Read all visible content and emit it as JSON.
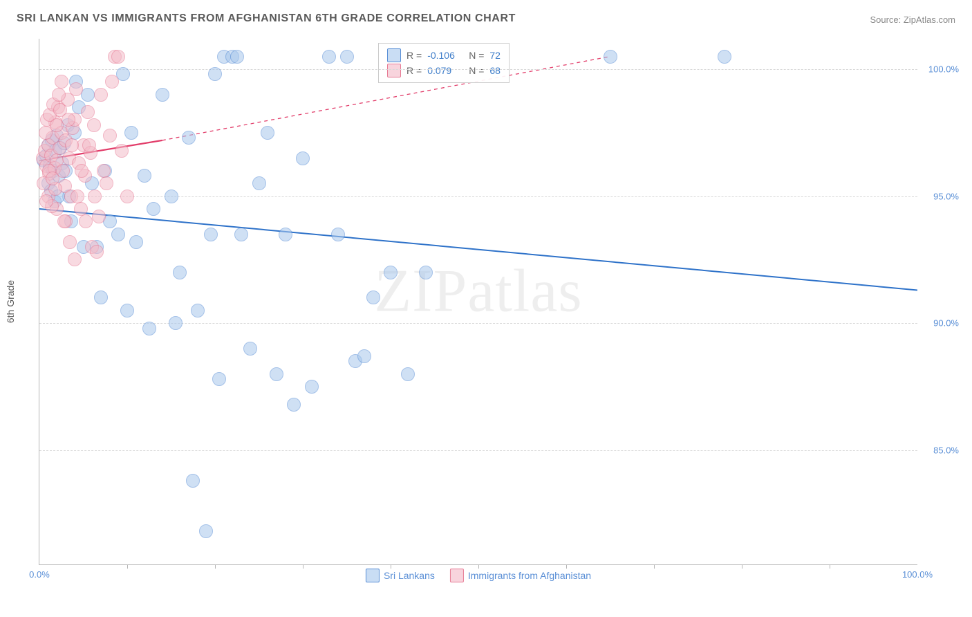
{
  "header": {
    "title": "SRI LANKAN VS IMMIGRANTS FROM AFGHANISTAN 6TH GRADE CORRELATION CHART",
    "source": "Source: ZipAtlas.com"
  },
  "chart": {
    "type": "scatter",
    "ylabel": "6th Grade",
    "watermark": "ZIPatlas",
    "background_color": "#ffffff",
    "grid_color": "#d8d8d8",
    "axis_color": "#b5b5b5",
    "xlim": [
      0,
      100
    ],
    "ylim": [
      80.5,
      101.2
    ],
    "x_ticks": [
      0,
      100
    ],
    "x_tick_labels": [
      "0.0%",
      "100.0%"
    ],
    "x_minor_ticks": [
      10,
      20,
      30,
      40,
      50,
      60,
      70,
      80,
      90
    ],
    "y_ticks": [
      85,
      90,
      95,
      100
    ],
    "y_tick_labels": [
      "85.0%",
      "90.0%",
      "95.0%",
      "100.0%"
    ],
    "marker_radius": 9,
    "marker_opacity": 0.55,
    "series": [
      {
        "name": "Sri Lankans",
        "color_fill": "#a8c7ec",
        "color_stroke": "#5a8fd6",
        "legend_swatch_fill": "#c9ddf4",
        "legend_swatch_stroke": "#5a8fd6",
        "R": "-0.106",
        "N": "72",
        "trend": {
          "x1": 0,
          "y1": 94.5,
          "x2": 100,
          "y2": 91.3,
          "color": "#2e72c9",
          "width": 2,
          "dash": "none"
        },
        "points": [
          [
            0.5,
            96.4
          ],
          [
            0.8,
            96.6
          ],
          [
            1.0,
            97.0
          ],
          [
            1.2,
            96.2
          ],
          [
            1.4,
            97.2
          ],
          [
            1.6,
            96.0
          ],
          [
            1.8,
            96.8
          ],
          [
            2.0,
            97.4
          ],
          [
            2.2,
            95.8
          ],
          [
            2.4,
            96.9
          ],
          [
            2.6,
            96.3
          ],
          [
            2.8,
            97.1
          ],
          [
            3.0,
            96.0
          ],
          [
            3.2,
            97.8
          ],
          [
            3.4,
            95.0
          ],
          [
            3.6,
            94.0
          ],
          [
            4.0,
            97.5
          ],
          [
            4.2,
            99.5
          ],
          [
            4.5,
            98.5
          ],
          [
            5.0,
            93.0
          ],
          [
            5.5,
            99.0
          ],
          [
            6.0,
            95.5
          ],
          [
            6.5,
            93.0
          ],
          [
            7.0,
            91.0
          ],
          [
            7.5,
            96.0
          ],
          [
            8.0,
            94.0
          ],
          [
            9.0,
            93.5
          ],
          [
            9.5,
            99.8
          ],
          [
            10.0,
            90.5
          ],
          [
            10.5,
            97.5
          ],
          [
            11.0,
            93.2
          ],
          [
            12.0,
            95.8
          ],
          [
            12.5,
            89.8
          ],
          [
            13.0,
            94.5
          ],
          [
            14.0,
            99.0
          ],
          [
            15.0,
            95.0
          ],
          [
            15.5,
            90.0
          ],
          [
            16.0,
            92.0
          ],
          [
            17.0,
            97.3
          ],
          [
            17.5,
            83.8
          ],
          [
            18.0,
            90.5
          ],
          [
            19.0,
            81.8
          ],
          [
            19.5,
            93.5
          ],
          [
            20.0,
            99.8
          ],
          [
            20.5,
            87.8
          ],
          [
            21.0,
            100.5
          ],
          [
            22.0,
            100.5
          ],
          [
            22.5,
            100.5
          ],
          [
            23.0,
            93.5
          ],
          [
            24.0,
            89.0
          ],
          [
            25.0,
            95.5
          ],
          [
            26.0,
            97.5
          ],
          [
            27.0,
            88.0
          ],
          [
            28.0,
            93.5
          ],
          [
            29.0,
            86.8
          ],
          [
            30.0,
            96.5
          ],
          [
            31.0,
            87.5
          ],
          [
            33.0,
            100.5
          ],
          [
            34.0,
            93.5
          ],
          [
            35.0,
            100.5
          ],
          [
            36.0,
            88.5
          ],
          [
            37.0,
            88.7
          ],
          [
            38.0,
            91.0
          ],
          [
            40.0,
            92.0
          ],
          [
            42.0,
            88.0
          ],
          [
            44.0,
            92.0
          ],
          [
            65.0,
            100.5
          ],
          [
            78.0,
            100.5
          ],
          [
            1.0,
            95.5
          ],
          [
            1.3,
            95.2
          ],
          [
            1.7,
            94.8
          ],
          [
            2.1,
            95.0
          ]
        ]
      },
      {
        "name": "Immigrants from Afghanistan",
        "color_fill": "#f4bcc9",
        "color_stroke": "#e77a94",
        "legend_swatch_fill": "#f8d4dd",
        "legend_swatch_stroke": "#e77a94",
        "R": "0.079",
        "N": "68",
        "trend": {
          "x1": 0,
          "y1": 96.4,
          "x2": 14,
          "y2": 97.2,
          "color": "#e23d6a",
          "width": 2.2,
          "dash": "none",
          "ext_x2": 65,
          "ext_y2": 100.5,
          "ext_dash": "5,5"
        },
        "points": [
          [
            0.4,
            96.5
          ],
          [
            0.6,
            96.8
          ],
          [
            0.8,
            96.2
          ],
          [
            1.0,
            97.0
          ],
          [
            1.1,
            95.9
          ],
          [
            1.3,
            96.6
          ],
          [
            1.5,
            97.3
          ],
          [
            1.7,
            96.1
          ],
          [
            1.8,
            97.9
          ],
          [
            2.0,
            96.4
          ],
          [
            2.1,
            98.5
          ],
          [
            2.3,
            96.9
          ],
          [
            2.5,
            97.5
          ],
          [
            2.7,
            96.0
          ],
          [
            2.9,
            95.4
          ],
          [
            3.0,
            97.2
          ],
          [
            3.2,
            98.8
          ],
          [
            3.4,
            96.5
          ],
          [
            3.6,
            95.0
          ],
          [
            3.8,
            97.7
          ],
          [
            4.0,
            98.0
          ],
          [
            4.2,
            99.2
          ],
          [
            4.5,
            96.3
          ],
          [
            4.7,
            94.5
          ],
          [
            5.0,
            97.0
          ],
          [
            5.2,
            95.8
          ],
          [
            5.5,
            98.3
          ],
          [
            5.8,
            96.7
          ],
          [
            6.0,
            93.0
          ],
          [
            6.2,
            97.8
          ],
          [
            6.5,
            92.8
          ],
          [
            6.8,
            94.2
          ],
          [
            7.0,
            99.0
          ],
          [
            7.3,
            96.0
          ],
          [
            7.6,
            95.5
          ],
          [
            8.0,
            97.4
          ],
          [
            8.3,
            99.5
          ],
          [
            8.6,
            100.5
          ],
          [
            9.0,
            100.5
          ],
          [
            9.4,
            96.8
          ],
          [
            10.0,
            95.0
          ],
          [
            3.0,
            94.0
          ],
          [
            3.5,
            93.2
          ],
          [
            4.0,
            92.5
          ],
          [
            2.0,
            94.5
          ],
          [
            2.5,
            99.5
          ],
          [
            1.0,
            95.0
          ],
          [
            1.4,
            94.6
          ],
          [
            1.8,
            95.3
          ],
          [
            0.7,
            97.5
          ],
          [
            0.9,
            98.0
          ],
          [
            1.2,
            98.2
          ],
          [
            1.6,
            98.6
          ],
          [
            2.2,
            99.0
          ],
          [
            0.5,
            95.5
          ],
          [
            0.8,
            94.8
          ],
          [
            1.1,
            96.0
          ],
          [
            1.5,
            95.7
          ],
          [
            2.0,
            97.8
          ],
          [
            2.4,
            98.4
          ],
          [
            2.8,
            94.0
          ],
          [
            3.3,
            98.0
          ],
          [
            3.7,
            97.0
          ],
          [
            4.3,
            95.0
          ],
          [
            4.8,
            96.0
          ],
          [
            5.3,
            94.0
          ],
          [
            5.7,
            97.0
          ],
          [
            6.3,
            95.0
          ]
        ]
      }
    ],
    "stats_box": {
      "rows": [
        {
          "swatch_fill": "#c9ddf4",
          "swatch_stroke": "#5a8fd6",
          "R_label": "R =",
          "R_val": "-0.106",
          "N_label": "N =",
          "N_val": "72"
        },
        {
          "swatch_fill": "#f8d4dd",
          "swatch_stroke": "#e77a94",
          "R_label": "R =",
          "R_val": "0.079",
          "N_label": "N =",
          "N_val": "68"
        }
      ],
      "label_color": "#666666",
      "value_color": "#3d7cc9"
    }
  }
}
